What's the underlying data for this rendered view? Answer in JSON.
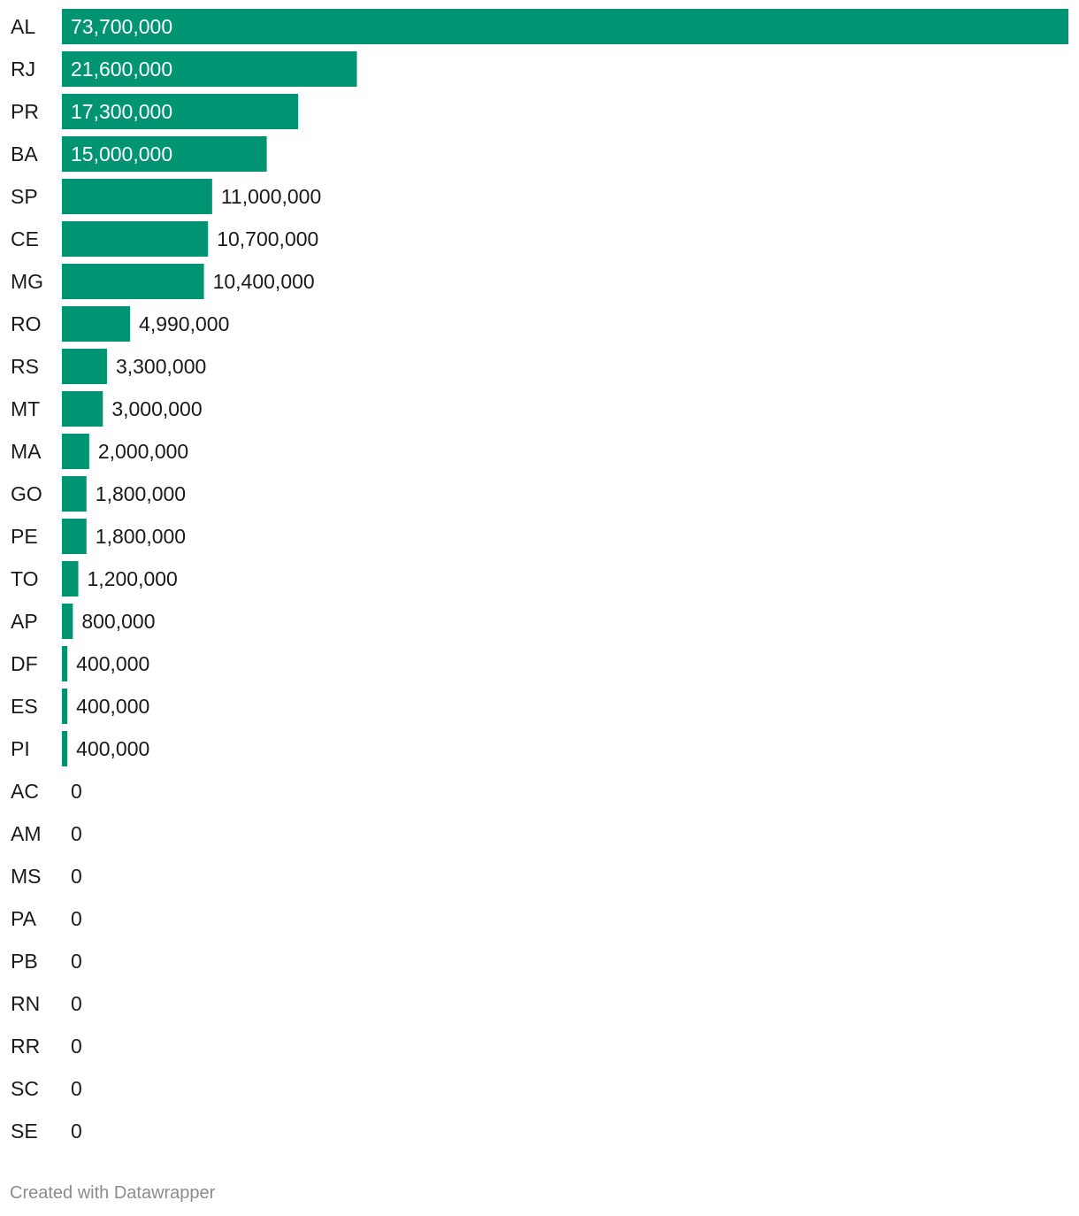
{
  "chart_data": {
    "type": "bar",
    "orientation": "horizontal",
    "categories": [
      "AL",
      "RJ",
      "PR",
      "BA",
      "SP",
      "CE",
      "MG",
      "RO",
      "RS",
      "MT",
      "MA",
      "GO",
      "PE",
      "TO",
      "AP",
      "DF",
      "ES",
      "PI",
      "AC",
      "AM",
      "MS",
      "PA",
      "PB",
      "RN",
      "RR",
      "SC",
      "SE"
    ],
    "values": [
      73700000,
      21600000,
      17300000,
      15000000,
      11000000,
      10700000,
      10400000,
      4990000,
      3300000,
      3000000,
      2000000,
      1800000,
      1800000,
      1200000,
      800000,
      400000,
      400000,
      400000,
      0,
      0,
      0,
      0,
      0,
      0,
      0,
      0,
      0
    ],
    "value_labels": [
      "73,700,000",
      "21,600,000",
      "17,300,000",
      "15,000,000",
      "11,000,000",
      "10,700,000",
      "10,400,000",
      "4,990,000",
      "3,300,000",
      "3,000,000",
      "2,000,000",
      "1,800,000",
      "1,800,000",
      "1,200,000",
      "800,000",
      "400,000",
      "400,000",
      "400,000",
      "0",
      "0",
      "0",
      "0",
      "0",
      "0",
      "0",
      "0",
      "0"
    ],
    "xlim": [
      0,
      73700000
    ],
    "grid": false,
    "colors": {
      "bar": "#009473",
      "label_inside": "#ffffff",
      "label_outside": "#1a1a1a",
      "category_label": "#1a1a1a"
    }
  },
  "footer": {
    "credit": "Created with Datawrapper"
  }
}
